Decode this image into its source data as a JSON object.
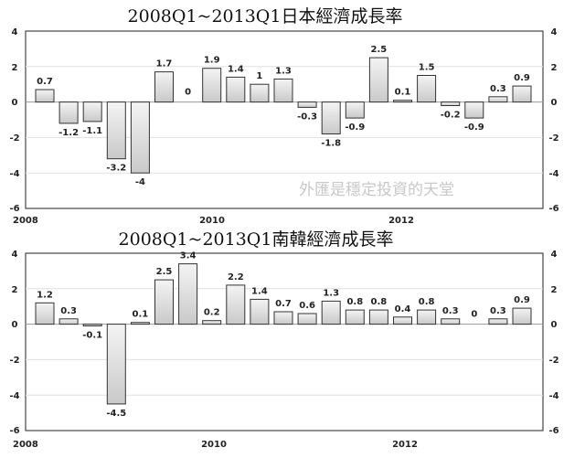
{
  "colors": {
    "bar_fill_top": "#f4f4f4",
    "bar_fill_bottom": "#c9c9c9",
    "bar_stroke": "#333333",
    "grid": "#e0e0e0",
    "axis": "#222222",
    "watermark": "#c8c8c8"
  },
  "chart_data": [
    {
      "type": "bar",
      "title": "2008Q1~2013Q1日本經濟成長率",
      "watermark": "外匯是穩定投資的天堂",
      "year_labels": [
        "2008",
        "2010",
        "2012"
      ],
      "ylim": [
        -6,
        4
      ],
      "yticks": [
        "4",
        "2",
        "0",
        "-2",
        "-4",
        "-6"
      ],
      "categories": [
        "2008Q1",
        "2008Q2",
        "2008Q3",
        "2008Q4",
        "2009Q1",
        "2009Q2",
        "2009Q3",
        "2009Q4",
        "2010Q1",
        "2010Q2",
        "2010Q3",
        "2010Q4",
        "2011Q1",
        "2011Q2",
        "2011Q3",
        "2011Q4",
        "2012Q1",
        "2012Q2",
        "2012Q3",
        "2012Q4",
        "2013Q1"
      ],
      "values": [
        0.7,
        -1.2,
        -1.1,
        -3.2,
        -4,
        1.7,
        0,
        1.9,
        1.4,
        1,
        1.3,
        -0.3,
        -1.8,
        -0.9,
        2.5,
        0.1,
        1.5,
        -0.2,
        -0.9,
        0.3,
        0.9
      ],
      "labels": [
        "0.7",
        "-1.2",
        "-1.1",
        "-3.2",
        "-4",
        "1.7",
        "0",
        "1.9",
        "1.4",
        "1",
        "1.3",
        "-0.3",
        "-1.8",
        "-0.9",
        "2.5",
        "0.1",
        "1.5",
        "-0.2",
        "-0.9",
        "0.3",
        "0.9"
      ]
    },
    {
      "type": "bar",
      "title": "2008Q1~2013Q1南韓經濟成長率",
      "year_labels": [
        "2008",
        "2010",
        "2012"
      ],
      "ylim": [
        -6,
        4
      ],
      "yticks": [
        "4",
        "2",
        "0",
        "-2",
        "-4",
        "-6"
      ],
      "categories": [
        "2008Q1",
        "2008Q2",
        "2008Q3",
        "2008Q4",
        "2009Q1",
        "2009Q2",
        "2009Q3",
        "2009Q4",
        "2010Q1",
        "2010Q2",
        "2010Q3",
        "2010Q4",
        "2011Q1",
        "2011Q2",
        "2011Q3",
        "2011Q4",
        "2012Q1",
        "2012Q2",
        "2012Q3",
        "2012Q4",
        "2013Q1"
      ],
      "values": [
        1.2,
        0.3,
        -0.1,
        -4.5,
        0.1,
        2.5,
        3.4,
        0.2,
        2.2,
        1.4,
        0.7,
        0.6,
        1.3,
        0.8,
        0.8,
        0.4,
        0.8,
        0.3,
        0,
        0.3,
        0.9
      ],
      "labels": [
        "1.2",
        "0.3",
        "-0.1",
        "-4.5",
        "0.1",
        "2.5",
        "3.4",
        "0.2",
        "2.2",
        "1.4",
        "0.7",
        "0.6",
        "1.3",
        "0.8",
        "0.8",
        "0.4",
        "0.8",
        "0.3",
        "0",
        "0.3",
        "0.9"
      ]
    }
  ]
}
